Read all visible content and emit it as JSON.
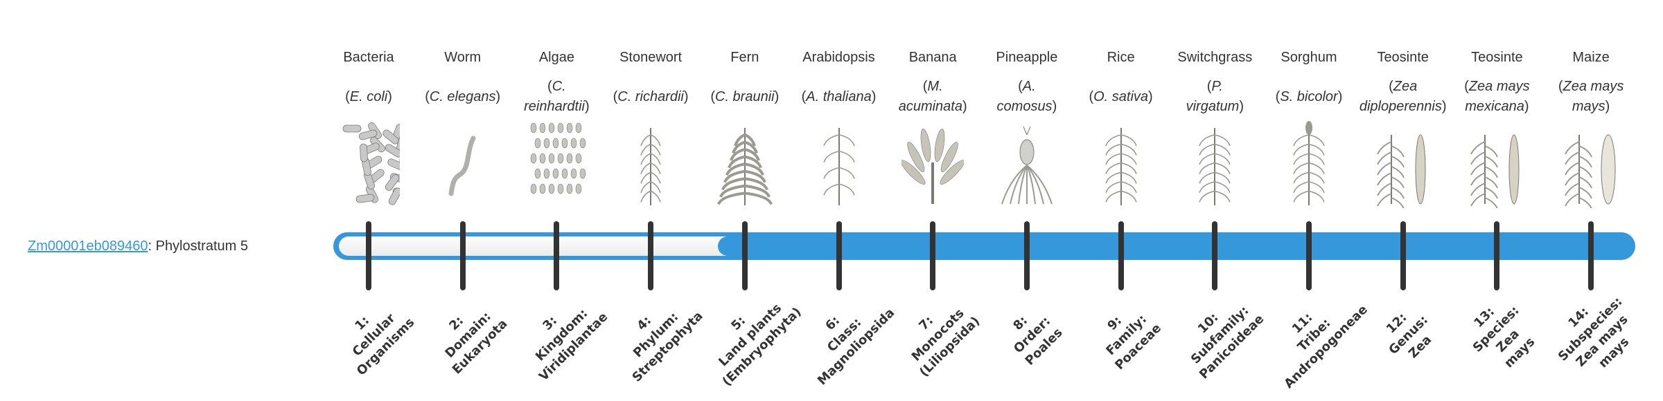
{
  "gene": {
    "id": "Zm00001eb089460",
    "suffix": ": Phylostratum 5",
    "phylostratum": 5
  },
  "colors": {
    "accent": "#3498db",
    "tick": "#333333",
    "track": "#f2f2f2"
  },
  "organisms": [
    {
      "name": "Bacteria",
      "species": "E. coli",
      "icon": "bacteria-icon"
    },
    {
      "name": "Worm",
      "species": "C. elegans",
      "icon": "worm-icon"
    },
    {
      "name": "Algae",
      "species": "C.\nreinhardtii",
      "icon": "algae-icon"
    },
    {
      "name": "Stonewort",
      "species": "C. richardii",
      "icon": "stonewort-icon"
    },
    {
      "name": "Fern",
      "species": "C. braunii",
      "icon": "fern-icon"
    },
    {
      "name": "Arabidopsis",
      "species": "A. thaliana",
      "icon": "arabidopsis-icon"
    },
    {
      "name": "Banana",
      "species": "M.\nacuminata",
      "icon": "banana-icon"
    },
    {
      "name": "Pineapple",
      "species": "A.\ncomosus",
      "icon": "pineapple-icon"
    },
    {
      "name": "Rice",
      "species": "O. sativa",
      "icon": "rice-icon"
    },
    {
      "name": "Switchgrass",
      "species": "P.\nvirgatum",
      "icon": "switchgrass-icon"
    },
    {
      "name": "Sorghum",
      "species": "S. bicolor",
      "icon": "sorghum-icon"
    },
    {
      "name": "Teosinte",
      "species": "Zea\ndiploperennis",
      "icon": "teosinte-icon"
    },
    {
      "name": "Teosinte",
      "species": "Zea mays\nmexicana",
      "icon": "teosinte-icon"
    },
    {
      "name": "Maize",
      "species": "Zea mays\nmays",
      "icon": "maize-icon"
    }
  ],
  "strata": [
    "1:\nCellular\nOrganisms",
    "2:\nDomain:\nEukaryota",
    "3:\nKingdom:\nViridiplantae",
    "4:\nPhylum:\nStreptophyta",
    "5:\nLand plants\n(Embryophyta)",
    "6:\nClass:\nMagnoliopsida",
    "7:\nMonocots\n(Liliopsida)",
    "8:\nOrder:\nPoales",
    "9:\nFamily:\nPoaceae",
    "10:\nSubfamily:\nPanicoideae",
    "11:\nTribe:\nAndropogoneae",
    "12:\nGenus:\nZea",
    "13:\nSpecies:\nZea\nmays",
    "14:\nSubspecies:\nZea mays\nmays"
  ]
}
